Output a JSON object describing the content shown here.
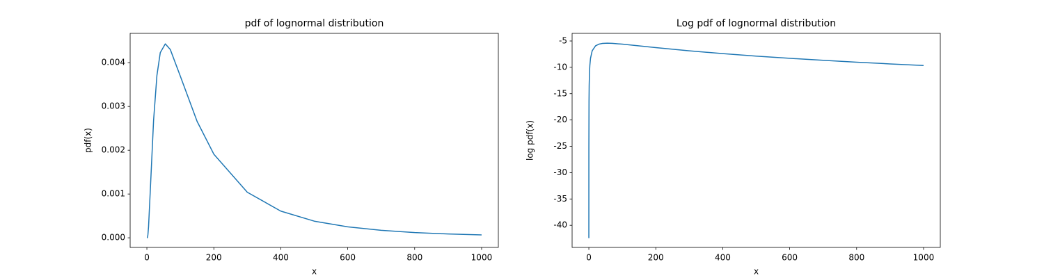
{
  "chart_data": [
    {
      "type": "line",
      "title": "pdf of lognormal distribution",
      "x_label": "x",
      "y_label": "pdf(x)",
      "x": [
        0.01,
        0.1,
        0.5,
        1,
        2,
        3,
        5,
        10,
        20,
        30,
        40,
        55,
        70,
        100,
        150,
        200,
        300,
        400,
        500,
        600,
        700,
        800,
        900,
        1000
      ],
      "series": [
        {
          "color": "#1f77b4",
          "values": [
            0,
            0,
            0,
            1.5e-06,
            1.87e-05,
            6.6e-05,
            0.000254,
            0.00105,
            0.00268,
            0.00371,
            0.00423,
            0.00443,
            0.0043,
            0.00369,
            0.00266,
            0.00191,
            0.00104,
            0.00061,
            0.00038,
            0.00025,
            0.000171,
            0.00012,
            8.7e-05,
            6.5e-05
          ]
        }
      ],
      "xlim": [
        -50,
        1050
      ],
      "xticks": [
        0,
        200,
        400,
        600,
        800,
        1000
      ],
      "ylim": [
        -0.00022,
        0.00467
      ],
      "yticks": [
        {
          "value": 0,
          "label": "0.000"
        },
        {
          "value": 0.001,
          "label": "0.001"
        },
        {
          "value": 0.002,
          "label": "0.002"
        },
        {
          "value": 0.003,
          "label": "0.003"
        },
        {
          "value": 0.004,
          "label": "0.004"
        }
      ],
      "grid": false
    },
    {
      "type": "line",
      "title": "Log pdf of lognormal distribution",
      "x_label": "x",
      "y_label": "log pdf(x)",
      "x": [
        0.01,
        0.1,
        0.5,
        1,
        2,
        3,
        5,
        10,
        20,
        30,
        40,
        55,
        70,
        100,
        150,
        200,
        300,
        400,
        500,
        600,
        700,
        800,
        900,
        1000
      ],
      "series": [
        {
          "color": "#1f77b4",
          "values": [
            -42.44,
            -25.29,
            -16.43,
            -13.42,
            -10.89,
            -9.63,
            -8.28,
            -6.86,
            -5.92,
            -5.6,
            -5.47,
            -5.42,
            -5.45,
            -5.6,
            -5.93,
            -6.26,
            -6.87,
            -7.4,
            -7.87,
            -8.29,
            -8.67,
            -9.02,
            -9.35,
            -9.65
          ]
        }
      ],
      "xlim": [
        -50,
        1050
      ],
      "xticks": [
        0,
        200,
        400,
        600,
        800,
        1000
      ],
      "ylim": [
        -44.2,
        -3.55
      ],
      "yticks": [
        -40,
        -35,
        -30,
        -25,
        -20,
        -15,
        -10,
        -5
      ],
      "grid": false
    }
  ]
}
